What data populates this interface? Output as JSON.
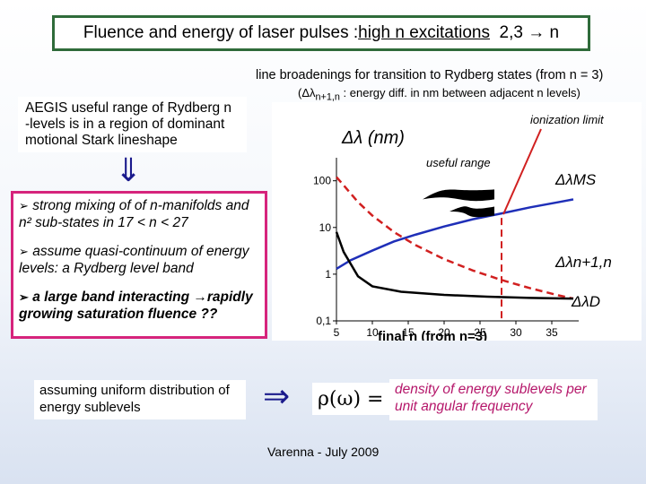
{
  "title": {
    "prefix": "Fluence and energy of laser pulses : ",
    "highlight": "high n excitations",
    "suffix": "  2,3 → n"
  },
  "subtitle": "line broadenings for transition to Rydberg states (from n = 3)",
  "subnote": {
    "prefix": "(Δλ",
    "sub": "n+1,n",
    "suffix": " : energy diff. in nm between adjacent n levels)"
  },
  "aegis_text": "AEGIS useful range of Rydberg n -levels is in a region of dominant motional Stark lineshape",
  "arrow_down": "⇓",
  "bullets": [
    {
      "marker": "➢",
      "text": " strong mixing of of n-manifolds and n² sub-states in 17 < n < 27"
    },
    {
      "marker": "➢",
      "text": " assume quasi-continuum of energy levels: a Rydberg level band"
    },
    {
      "marker": "➢",
      "text": " a large band interacting →rapidly growing saturation fluence ??"
    }
  ],
  "uniform_text": "assuming uniform distribution of energy sublevels",
  "implies": "⇒",
  "formula": "ρ(ω) =",
  "density_text": "density of energy sublevels per unit angular frequency",
  "footer": "Varenna - July 2009",
  "chart_data": {
    "type": "line",
    "ylabel": "Δλ (nm)",
    "xlabel": "final n (from n=3)",
    "x_ticks": [
      "5",
      "10",
      "15",
      "20",
      "25",
      "30",
      "35"
    ],
    "y_ticks": [
      "0,1",
      "1",
      "10",
      "100"
    ],
    "log_y": true,
    "xlim": [
      5,
      38
    ],
    "ylim": [
      0.1,
      200
    ],
    "annotations": {
      "ionization": "ionization limit",
      "useful": "useful range"
    },
    "ionization_n": 28,
    "useful_range": [
      17,
      27
    ],
    "series": [
      {
        "name": "ΔλMS",
        "color": "#1f2fb8",
        "dashed": false,
        "x": [
          5,
          7,
          10,
          13,
          16,
          20,
          24,
          28,
          32,
          36,
          38
        ],
        "y": [
          1.3,
          2.0,
          3.2,
          5.0,
          7.0,
          10.5,
          15,
          20,
          27,
          35,
          40
        ]
      },
      {
        "name": "Δλn+1,n",
        "color": "#d12020",
        "dashed": true,
        "x": [
          5,
          6,
          8,
          10,
          13,
          16,
          20,
          24,
          28,
          32,
          36,
          38
        ],
        "y": [
          120,
          80,
          35,
          18,
          8,
          4.2,
          2.1,
          1.2,
          0.75,
          0.5,
          0.35,
          0.3
        ]
      },
      {
        "name": "ΔλD",
        "color": "#000000",
        "dashed": false,
        "x": [
          5,
          6,
          8,
          10,
          14,
          20,
          26,
          32,
          38
        ],
        "y": [
          8,
          3,
          0.9,
          0.55,
          0.42,
          0.36,
          0.33,
          0.31,
          0.3
        ]
      }
    ]
  }
}
